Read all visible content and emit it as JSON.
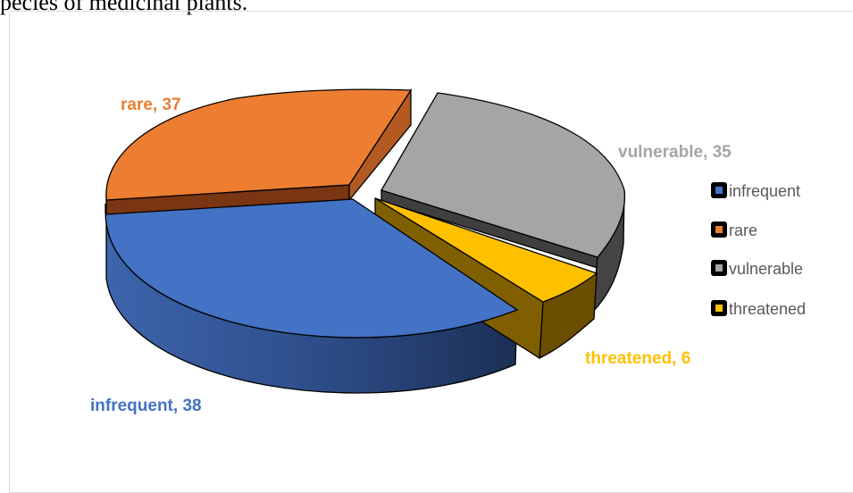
{
  "caption": "pecies of medicinal plants.",
  "colors": {
    "infrequent": "#4472c4",
    "rare": "#ed7d31",
    "vulnerable": "#a5a5a5",
    "threatened": "#ffc000"
  },
  "chart_data": {
    "type": "pie",
    "title": "",
    "categories": [
      "infrequent",
      "rare",
      "vulnerable",
      "threatened"
    ],
    "values": [
      38,
      37,
      35,
      6
    ],
    "data_labels": [
      "infrequent, 38",
      "rare, 37",
      "vulnerable, 35",
      "threatened, 6"
    ],
    "legend": {
      "placement": "right",
      "entries": [
        "infrequent",
        "rare",
        "vulnerable",
        "threatened"
      ]
    },
    "style": "3d-exploded"
  }
}
